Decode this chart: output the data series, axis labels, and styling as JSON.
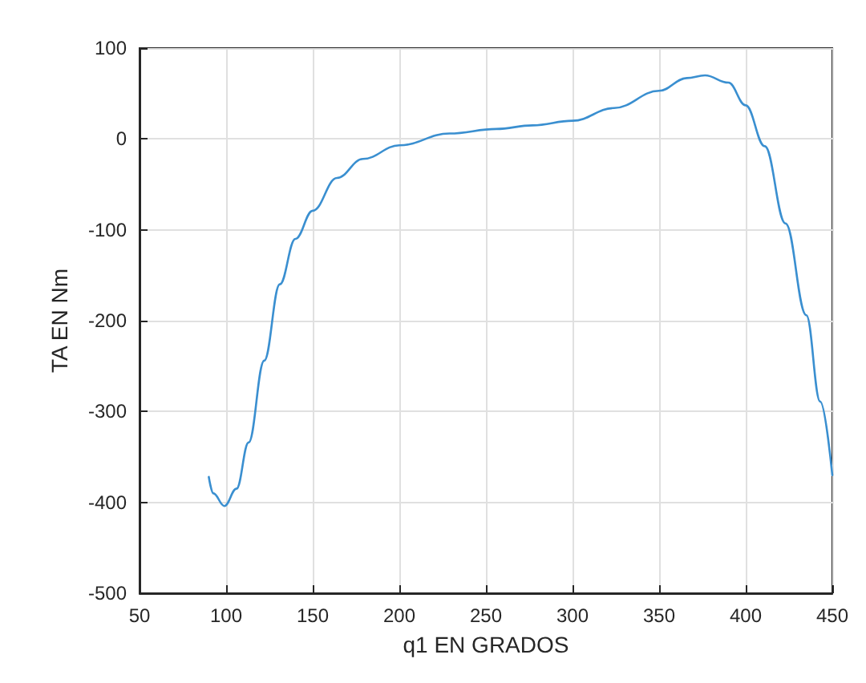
{
  "chart_data": {
    "type": "line",
    "xlabel": "q1 EN GRADOS",
    "ylabel": "TA EN Nm",
    "xlim": [
      50,
      450
    ],
    "xticks": [
      50,
      100,
      150,
      200,
      250,
      300,
      350,
      400,
      450
    ],
    "ylim": [
      -500,
      100
    ],
    "yticks": [
      -500,
      -400,
      -300,
      -200,
      -100,
      0,
      100
    ],
    "grid": true,
    "marker": "none",
    "line_style": "solid",
    "x": [
      90,
      92.6,
      99,
      106,
      113,
      122,
      131,
      140,
      150,
      164,
      179,
      200,
      229,
      256,
      277,
      300,
      324,
      350,
      366,
      376.5,
      390,
      400,
      411,
      423,
      435,
      443,
      450
    ],
    "series": [
      {
        "color": "#3a8fd0",
        "values": [
          -372,
          -390,
          -404,
          -385,
          -334,
          -244,
          -160,
          -110,
          -79,
          -43,
          -22,
          -7,
          6,
          11,
          15,
          20,
          34,
          53,
          67,
          70,
          62,
          37,
          -8,
          -93,
          -194,
          -289,
          -370
        ]
      }
    ]
  }
}
